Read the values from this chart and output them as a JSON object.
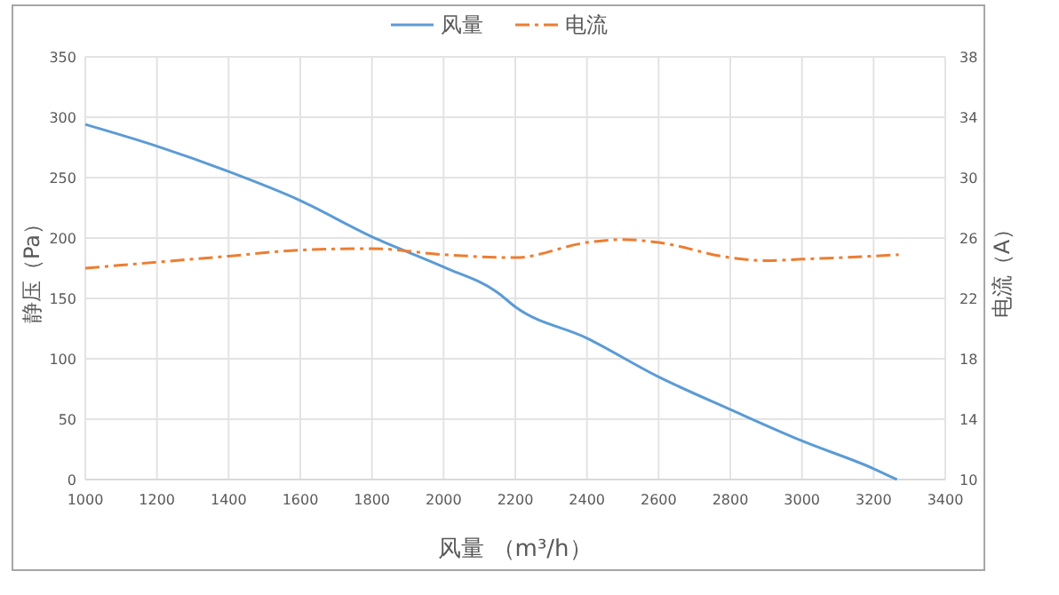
{
  "chart_data": {
    "type": "line",
    "xlabel": "风量 （m³/h）",
    "ylabel": "静压（Pa）",
    "y2label": "电流（A）",
    "xlim": [
      1000,
      3400
    ],
    "xticks": [
      1000,
      1200,
      1400,
      1600,
      1800,
      2000,
      2200,
      2400,
      2600,
      2800,
      3000,
      3200,
      3400
    ],
    "ylim": [
      0,
      350
    ],
    "yticks": [
      0,
      50,
      100,
      150,
      200,
      250,
      300,
      350
    ],
    "y2lim": [
      10,
      38
    ],
    "y2ticks": [
      10,
      14,
      18,
      22,
      26,
      30,
      34,
      38
    ],
    "grid": true,
    "legend": "top",
    "marker": "none",
    "series": [
      {
        "name": "风量",
        "color": "#5b9bd5",
        "line_style": "solid",
        "x": [
          1000,
          1200,
          1400,
          1600,
          1800,
          2000,
          2150,
          2200,
          2400,
          2600,
          2800,
          3000,
          3200,
          3265
        ],
        "values": [
          294,
          276,
          255,
          231,
          201,
          176,
          155,
          143,
          117,
          85,
          58,
          32,
          9,
          0
        ]
      },
      {
        "name": "电流",
        "color": "#ed7d31",
        "line_style": "dashdot",
        "axis": "y2",
        "x": [
          1000,
          1200,
          1400,
          1600,
          1800,
          2000,
          2200,
          2400,
          2500,
          2600,
          2800,
          2900,
          3000,
          3200,
          3270
        ],
        "values": [
          24.0,
          24.4,
          24.8,
          25.2,
          25.3,
          24.9,
          24.7,
          25.7,
          25.9,
          25.7,
          24.7,
          24.5,
          24.6,
          24.8,
          24.9
        ]
      }
    ]
  }
}
